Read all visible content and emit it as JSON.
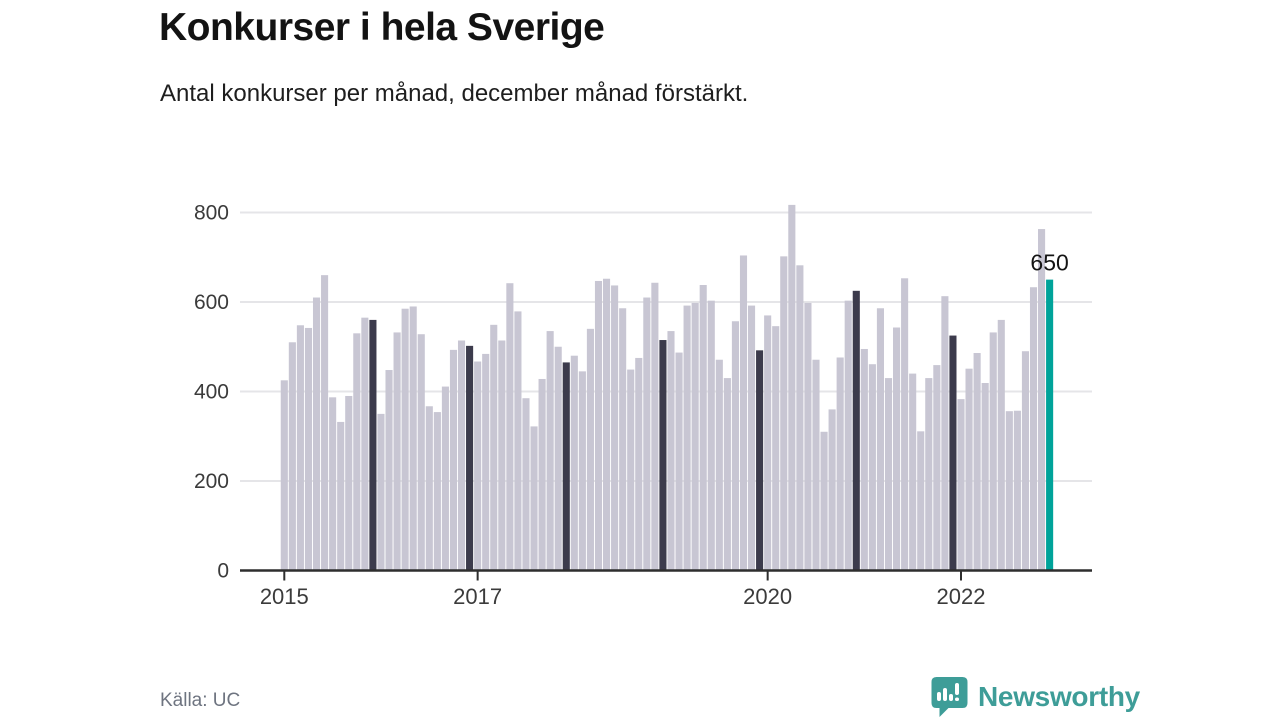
{
  "header": {
    "title": "Konkurser i hela Sverige",
    "subtitle": "Antal konkurser per månad, december månad förstärkt."
  },
  "chart_data": {
    "type": "bar",
    "title": "Konkurser i hela Sverige",
    "subtitle": "Antal konkurser per månad, december månad förstärkt.",
    "x_start": "2015-01",
    "x_end": "2022-12",
    "ylim": [
      0,
      800
    ],
    "yticks": [
      0,
      200,
      400,
      600,
      800
    ],
    "xticks": [
      {
        "label": "2015",
        "month_index": 0
      },
      {
        "label": "2017",
        "month_index": 24
      },
      {
        "label": "2020",
        "month_index": 60
      },
      {
        "label": "2022",
        "month_index": 84
      }
    ],
    "grid": "horizontal",
    "legend": "none",
    "highlight_rule": "December months rendered dark; latest month rendered teal",
    "december_indices": [
      11,
      23,
      35,
      47,
      59,
      71,
      83
    ],
    "current_index": 95,
    "annotation": {
      "label": "650",
      "month_index": 95
    },
    "series": [
      {
        "name": "Antal konkurser per månad",
        "values": [
          425,
          510,
          548,
          542,
          610,
          660,
          387,
          332,
          390,
          530,
          565,
          560,
          350,
          448,
          532,
          585,
          590,
          528,
          367,
          354,
          411,
          493,
          514,
          502,
          467,
          484,
          549,
          514,
          642,
          579,
          385,
          322,
          428,
          535,
          500,
          465,
          480,
          445,
          540,
          647,
          652,
          637,
          586,
          449,
          475,
          610,
          643,
          515,
          535,
          487,
          592,
          598,
          638,
          603,
          471,
          430,
          557,
          704,
          592,
          492,
          570,
          546,
          702,
          817,
          682,
          598,
          471,
          310,
          360,
          476,
          603,
          625,
          495,
          461,
          586,
          430,
          543,
          653,
          440,
          311,
          430,
          459,
          613,
          525,
          383,
          451,
          486,
          419,
          532,
          560,
          356,
          357,
          490,
          633,
          763,
          650
        ]
      }
    ]
  },
  "colors": {
    "bar_normal": "#c8c6d3",
    "bar_december": "#3c3b4c",
    "bar_current": "#00a39a",
    "gridline": "#e5e5e8",
    "axis": "#2e2e2e",
    "axis_label": "#3b3b3b",
    "annotation_text": "#141414",
    "brand_teal": "#3e9d98"
  },
  "footer": {
    "source": "Källa: UC",
    "brand": "Newsworthy"
  }
}
